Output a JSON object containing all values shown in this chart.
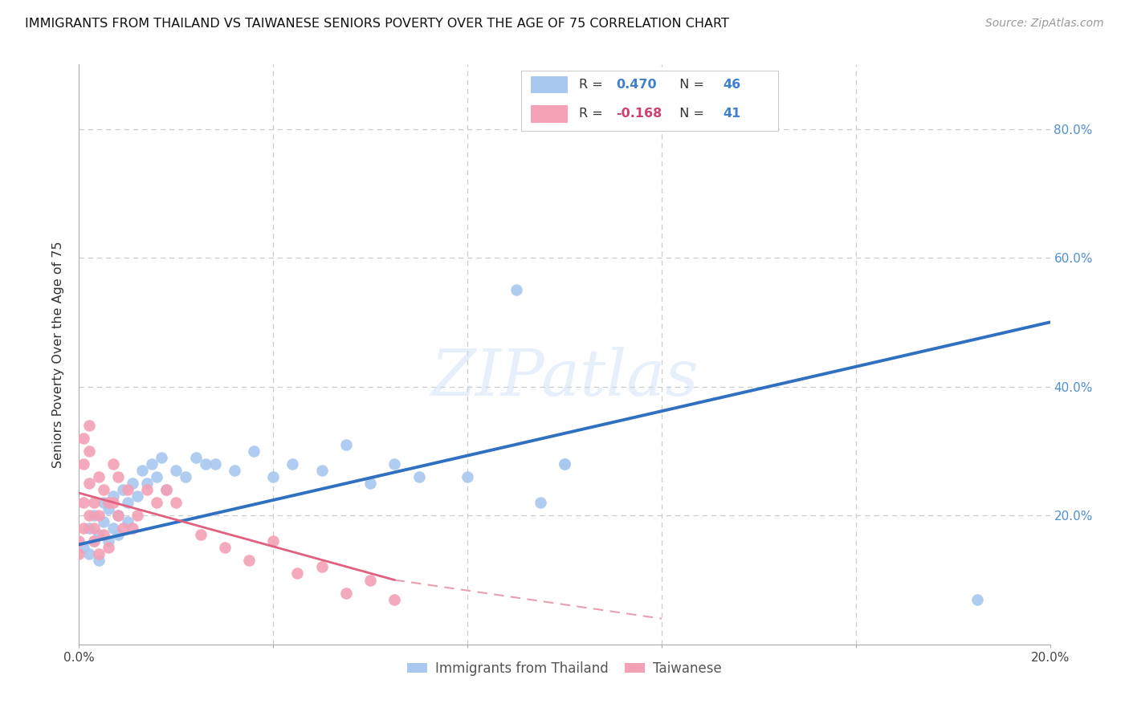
{
  "title": "IMMIGRANTS FROM THAILAND VS TAIWANESE SENIORS POVERTY OVER THE AGE OF 75 CORRELATION CHART",
  "source": "Source: ZipAtlas.com",
  "ylabel": "Seniors Poverty Over the Age of 75",
  "watermark": "ZIPatlas",
  "legend_label_blue": "Immigrants from Thailand",
  "legend_label_pink": "Taiwanese",
  "color_blue": "#a8c8f0",
  "color_pink": "#f4a0b5",
  "color_blue_line": "#3070c0",
  "color_pink_line": "#e06080",
  "color_pink_line_dash": "#e8a0b0",
  "xlim": [
    0.0,
    0.2
  ],
  "ylim": [
    0.0,
    0.9
  ],
  "blue_x": [
    0.001,
    0.002,
    0.002,
    0.003,
    0.003,
    0.004,
    0.004,
    0.005,
    0.005,
    0.006,
    0.006,
    0.007,
    0.007,
    0.008,
    0.008,
    0.009,
    0.01,
    0.01,
    0.011,
    0.012,
    0.013,
    0.014,
    0.015,
    0.016,
    0.017,
    0.018,
    0.02,
    0.022,
    0.024,
    0.026,
    0.028,
    0.032,
    0.036,
    0.04,
    0.044,
    0.05,
    0.055,
    0.06,
    0.065,
    0.07,
    0.08,
    0.09,
    0.095,
    0.1,
    0.185,
    0.1
  ],
  "blue_y": [
    0.15,
    0.18,
    0.14,
    0.16,
    0.2,
    0.17,
    0.13,
    0.19,
    0.22,
    0.16,
    0.21,
    0.18,
    0.23,
    0.2,
    0.17,
    0.24,
    0.22,
    0.19,
    0.25,
    0.23,
    0.27,
    0.25,
    0.28,
    0.26,
    0.29,
    0.24,
    0.27,
    0.26,
    0.29,
    0.28,
    0.28,
    0.27,
    0.3,
    0.26,
    0.28,
    0.27,
    0.31,
    0.25,
    0.28,
    0.26,
    0.26,
    0.55,
    0.22,
    0.28,
    0.07,
    0.28
  ],
  "pink_x": [
    0.0,
    0.0,
    0.001,
    0.001,
    0.001,
    0.001,
    0.002,
    0.002,
    0.002,
    0.002,
    0.003,
    0.003,
    0.003,
    0.004,
    0.004,
    0.004,
    0.005,
    0.005,
    0.006,
    0.006,
    0.007,
    0.007,
    0.008,
    0.008,
    0.009,
    0.01,
    0.011,
    0.012,
    0.014,
    0.016,
    0.018,
    0.02,
    0.025,
    0.03,
    0.035,
    0.04,
    0.045,
    0.05,
    0.055,
    0.06,
    0.065
  ],
  "pink_y": [
    0.14,
    0.16,
    0.32,
    0.28,
    0.18,
    0.22,
    0.34,
    0.25,
    0.3,
    0.2,
    0.16,
    0.22,
    0.18,
    0.14,
    0.2,
    0.26,
    0.24,
    0.17,
    0.22,
    0.15,
    0.28,
    0.22,
    0.2,
    0.26,
    0.18,
    0.24,
    0.18,
    0.2,
    0.24,
    0.22,
    0.24,
    0.22,
    0.17,
    0.15,
    0.13,
    0.16,
    0.11,
    0.12,
    0.08,
    0.1,
    0.07
  ],
  "blue_line_x0": 0.0,
  "blue_line_x1": 0.2,
  "blue_line_y0": 0.155,
  "blue_line_y1": 0.5,
  "pink_line_x0": 0.0,
  "pink_line_x1": 0.065,
  "pink_line_y0": 0.235,
  "pink_line_y1": 0.1
}
